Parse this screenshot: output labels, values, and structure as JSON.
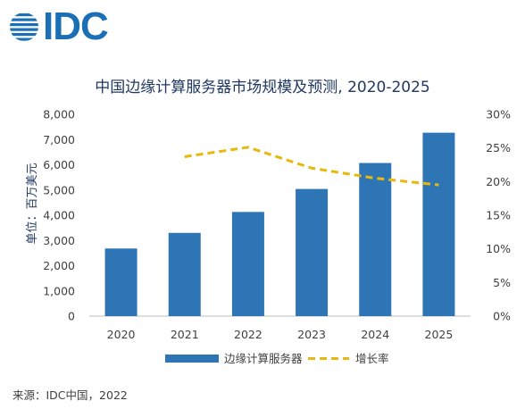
{
  "logo": {
    "text": "IDC"
  },
  "chart_data": {
    "type": "bar",
    "title": "中国边缘计算服务器市场规模及预测, 2020-2025",
    "ylabel": "单位：百万美元",
    "categories": [
      "2020",
      "2021",
      "2022",
      "2023",
      "2024",
      "2025"
    ],
    "series": [
      {
        "name": "边缘计算服务器",
        "type": "bar",
        "axis": "left",
        "values": [
          2680,
          3300,
          4130,
          5040,
          6070,
          7270
        ],
        "color": "#2e75b6"
      },
      {
        "name": "增长率",
        "type": "line",
        "axis": "right",
        "style": "dashed",
        "values": [
          null,
          0.237,
          0.251,
          0.22,
          0.205,
          0.195
        ],
        "color": "#e8b90c"
      }
    ],
    "y_left": {
      "min": 0,
      "max": 8000,
      "ticks": [
        "0",
        "1,000",
        "2,000",
        "3,000",
        "4,000",
        "5,000",
        "6,000",
        "7,000",
        "8,000"
      ]
    },
    "y_right": {
      "min": 0,
      "max": 0.3,
      "ticks": [
        "0%",
        "5%",
        "10%",
        "15%",
        "20%",
        "25%",
        "30%"
      ]
    },
    "grid": false,
    "legend": "bottom",
    "source": "来源：IDC中国，2022"
  }
}
